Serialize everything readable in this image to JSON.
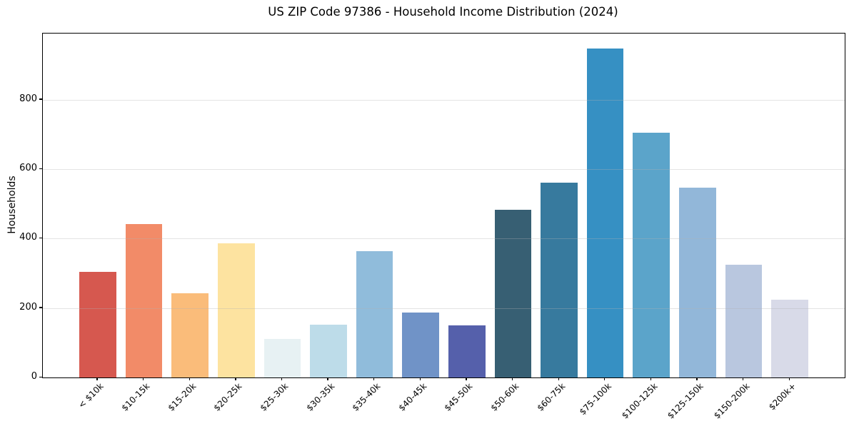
{
  "chart_data": {
    "type": "bar",
    "title": "US ZIP Code 97386 - Household Income Distribution (2024)",
    "xlabel": "",
    "ylabel": "Households",
    "categories": [
      "< $10k",
      "$10-15k",
      "$15-20k",
      "$20-25k",
      "$25-30k",
      "$30-35k",
      "$35-40k",
      "$40-45k",
      "$45-50k",
      "$50-60k",
      "$60-75k",
      "$75-100k",
      "$100-125k",
      "$125-150k",
      "$150-200k",
      "$200k+"
    ],
    "values": [
      304,
      443,
      242,
      387,
      111,
      152,
      364,
      187,
      151,
      484,
      562,
      948,
      706,
      546,
      325,
      224
    ],
    "bar_colors": [
      "#d6584f",
      "#f28b68",
      "#fabc7a",
      "#fde3a0",
      "#e7f1f3",
      "#bddce9",
      "#90bcdb",
      "#7093c7",
      "#5560ab",
      "#375f73",
      "#377a9e",
      "#3690c3",
      "#5ba4ca",
      "#92b7d9",
      "#b9c7df",
      "#d8dae8"
    ],
    "yticks": [
      0,
      200,
      400,
      600,
      800
    ],
    "ylim": [
      0,
      991
    ],
    "grid": "horizontal-on-top",
    "grid_base_color": "#b2b2b2",
    "axis_color": "#000000",
    "background_color": "#ffffff",
    "legend": "none"
  }
}
